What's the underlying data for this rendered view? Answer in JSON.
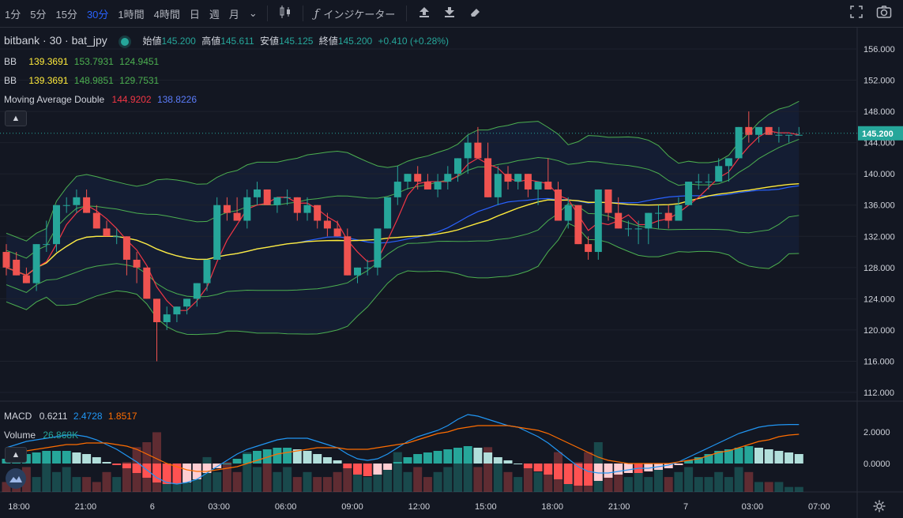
{
  "toolbar": {
    "timeframes": [
      "1分",
      "5分",
      "15分",
      "30分",
      "1時間",
      "4時間",
      "日",
      "週",
      "月"
    ],
    "active": "30分",
    "indicator_label": "インジケーター",
    "dropdown_glyph": "⌄"
  },
  "legend": {
    "symbol": "bitbank · 30 · bat_jpy",
    "open_label": "始値",
    "open": "145.200",
    "high_label": "高値",
    "high": "145.611",
    "low_label": "安値",
    "low": "145.125",
    "close_label": "終値",
    "close": "145.200",
    "change": "+0.410 (+0.28%)",
    "bb1": {
      "label": "BB",
      "basis": "139.3691",
      "upper": "153.7931",
      "lower": "124.9451"
    },
    "bb2": {
      "label": "BB",
      "basis": "139.3691",
      "upper": "148.9851",
      "lower": "129.7531"
    },
    "mad": {
      "label": "Moving Average Double",
      "fast": "144.9202",
      "slow": "138.8226"
    },
    "macd": {
      "label": "MACD",
      "hist": "0.6211",
      "macd": "2.4728",
      "signal": "1.8517"
    },
    "volume": {
      "label": "Volume",
      "value": "26.868K"
    }
  },
  "colors": {
    "up": "#26a69a",
    "down": "#ef5350",
    "bb": "#4caf50",
    "ma_fast": "#f23645",
    "ma_slow": "#2962ff",
    "ma_yellow": "#ffeb3b",
    "macd": "#2196f3",
    "signal": "#ff6d00"
  },
  "chart_data": {
    "type": "candlestick",
    "price_axis_ticks": [
      156,
      152,
      148,
      144,
      140,
      136,
      132,
      128,
      124,
      120,
      116,
      112
    ],
    "price_axis_labels": [
      "156.000",
      "152.000",
      "148.000",
      "144.000",
      "140.000",
      "136.000",
      "132.000",
      "128.000",
      "124.000",
      "120.000",
      "116.000",
      "112.000"
    ],
    "last_price": "145.200",
    "macd_axis_labels": [
      "2.0000",
      "0.0000"
    ],
    "time_labels": [
      "18:00",
      "21:00",
      "6",
      "03:00",
      "06:00",
      "09:00",
      "12:00",
      "15:00",
      "18:00",
      "21:00",
      "7",
      "03:00",
      "07:00"
    ],
    "candles_ohlc": [
      [
        130,
        131,
        127,
        128
      ],
      [
        129,
        130,
        127,
        127
      ],
      [
        127,
        128,
        126,
        126
      ],
      [
        126,
        131,
        125,
        131
      ],
      [
        131,
        134,
        130,
        131
      ],
      [
        131,
        136,
        130,
        136
      ],
      [
        136,
        137,
        135,
        136
      ],
      [
        136,
        138,
        135,
        137
      ],
      [
        137,
        138,
        135,
        135
      ],
      [
        135,
        136,
        133,
        133
      ],
      [
        133,
        134,
        132,
        132
      ],
      [
        132,
        133,
        131,
        132
      ],
      [
        132,
        132,
        127,
        129
      ],
      [
        129,
        130,
        126,
        128
      ],
      [
        128,
        128,
        124,
        124
      ],
      [
        124,
        124,
        116,
        121
      ],
      [
        121,
        123,
        120,
        122
      ],
      [
        122,
        123,
        121,
        123
      ],
      [
        123,
        124,
        122,
        124
      ],
      [
        124,
        126,
        123,
        126
      ],
      [
        126,
        129,
        125,
        129
      ],
      [
        129,
        137,
        129,
        136
      ],
      [
        136,
        137,
        134,
        135
      ],
      [
        135,
        137,
        134,
        134
      ],
      [
        134,
        138,
        133,
        137
      ],
      [
        137,
        139,
        136,
        138
      ],
      [
        138,
        138,
        136,
        136
      ],
      [
        136,
        137,
        135,
        137
      ],
      [
        137,
        138,
        136,
        137
      ],
      [
        137,
        137,
        134,
        135
      ],
      [
        135,
        137,
        134,
        136
      ],
      [
        136,
        136,
        133,
        134
      ],
      [
        134,
        135,
        132,
        133
      ],
      [
        133,
        134,
        132,
        132
      ],
      [
        132,
        133,
        127,
        127
      ],
      [
        127,
        128,
        126,
        128
      ],
      [
        128,
        129,
        127,
        128
      ],
      [
        128,
        133,
        127,
        133
      ],
      [
        133,
        137,
        133,
        137
      ],
      [
        137,
        141,
        136,
        139
      ],
      [
        139,
        140,
        138,
        140
      ],
      [
        140,
        141,
        138,
        139
      ],
      [
        139,
        140,
        138,
        138
      ],
      [
        138,
        140,
        137,
        139
      ],
      [
        139,
        141,
        138,
        140
      ],
      [
        140,
        142,
        139,
        142
      ],
      [
        142,
        145,
        140,
        144
      ],
      [
        144,
        146,
        143,
        142
      ],
      [
        142,
        144,
        137,
        137
      ],
      [
        137,
        141,
        136,
        140
      ],
      [
        140,
        141,
        138,
        139
      ],
      [
        139,
        140,
        138,
        140
      ],
      [
        140,
        140,
        137,
        138
      ],
      [
        138,
        139,
        136,
        139
      ],
      [
        139,
        142,
        138,
        138
      ],
      [
        138,
        139,
        134,
        134
      ],
      [
        134,
        137,
        133,
        136
      ],
      [
        136,
        136,
        131,
        131
      ],
      [
        131,
        132,
        129,
        130
      ],
      [
        130,
        138,
        129,
        138
      ],
      [
        138,
        138,
        134,
        135
      ],
      [
        135,
        137,
        133,
        133
      ],
      [
        133,
        134,
        132,
        133
      ],
      [
        133,
        134,
        131,
        133
      ],
      [
        133,
        135,
        131,
        135
      ],
      [
        135,
        136,
        133,
        135
      ],
      [
        135,
        136,
        133,
        134
      ],
      [
        134,
        137,
        134,
        136
      ],
      [
        136,
        139,
        136,
        139
      ],
      [
        139,
        140,
        138,
        139
      ],
      [
        139,
        140,
        138,
        139
      ],
      [
        139,
        142,
        139,
        141
      ],
      [
        141,
        142,
        139,
        142
      ],
      [
        142,
        146,
        142,
        146
      ],
      [
        146,
        148,
        144,
        145
      ],
      [
        145,
        146,
        144,
        146
      ],
      [
        146,
        146,
        145,
        145
      ],
      [
        145,
        146,
        144,
        145
      ],
      [
        145,
        145,
        144,
        145
      ],
      [
        145,
        146,
        145,
        145
      ]
    ],
    "volume": [
      2,
      4,
      5,
      3,
      6,
      4,
      5,
      3,
      3,
      2,
      4,
      3,
      6,
      9,
      10,
      12,
      4,
      3,
      3,
      5,
      7,
      4,
      6,
      4,
      8,
      5,
      6,
      4,
      5,
      3,
      4,
      3,
      3,
      4,
      5,
      4,
      3,
      4,
      5,
      8,
      4,
      5,
      3,
      4,
      5,
      6,
      7,
      5,
      9,
      6,
      4,
      3,
      5,
      4,
      4,
      8,
      5,
      6,
      8,
      10,
      3,
      4,
      3,
      4,
      3,
      5,
      3,
      4,
      5,
      3,
      3,
      4,
      3,
      5,
      4,
      2,
      2,
      2,
      1,
      1
    ],
    "macd_hist": [
      0.3,
      0.5,
      0.6,
      0.7,
      0.8,
      0.8,
      0.8,
      0.7,
      0.6,
      0.4,
      0.1,
      -0.1,
      -0.3,
      -0.6,
      -0.9,
      -1.2,
      -1.3,
      -1.3,
      -1.2,
      -1.0,
      -0.6,
      -0.3,
      0.0,
      0.3,
      0.6,
      0.8,
      0.9,
      1.0,
      1.0,
      0.9,
      0.8,
      0.6,
      0.4,
      0.2,
      -0.3,
      -0.7,
      -0.8,
      -0.7,
      -0.4,
      0.1,
      0.4,
      0.6,
      0.7,
      0.8,
      0.9,
      1.0,
      1.1,
      1.0,
      0.7,
      0.4,
      0.2,
      0.0,
      -0.3,
      -0.5,
      -0.7,
      -1.0,
      -1.3,
      -1.4,
      -1.4,
      -1.1,
      -0.9,
      -0.7,
      -0.6,
      -0.6,
      -0.5,
      -0.4,
      -0.3,
      -0.1,
      0.2,
      0.4,
      0.6,
      0.8,
      0.9,
      1.0,
      1.1,
      1.0,
      0.9,
      0.8,
      0.7,
      0.6
    ],
    "macd_line": [
      1.0,
      1.2,
      1.4,
      1.5,
      1.6,
      1.7,
      1.8,
      1.8,
      1.7,
      1.5,
      1.2,
      0.9,
      0.5,
      0.1,
      -0.4,
      -0.9,
      -1.2,
      -1.3,
      -1.2,
      -1.0,
      -0.6,
      -0.2,
      0.2,
      0.6,
      0.9,
      1.1,
      1.3,
      1.5,
      1.6,
      1.6,
      1.6,
      1.4,
      1.2,
      1.0,
      0.6,
      0.3,
      0.2,
      0.3,
      0.6,
      1.0,
      1.4,
      1.7,
      1.9,
      2.1,
      2.4,
      2.8,
      3.1,
      3.0,
      2.8,
      2.6,
      2.4,
      2.3,
      2.0,
      1.7,
      1.3,
      0.8,
      0.3,
      -0.2,
      -0.5,
      -0.6,
      -0.6,
      -0.5,
      -0.4,
      -0.3,
      -0.3,
      -0.2,
      -0.1,
      0.1,
      0.4,
      0.7,
      1.0,
      1.3,
      1.6,
      1.9,
      2.1,
      2.3,
      2.4,
      2.45,
      2.47,
      2.47
    ],
    "signal_line": [
      0.6,
      0.7,
      0.8,
      0.9,
      1.0,
      1.1,
      1.2,
      1.2,
      1.3,
      1.3,
      1.3,
      1.2,
      1.1,
      0.9,
      0.6,
      0.3,
      0.0,
      -0.2,
      -0.4,
      -0.5,
      -0.5,
      -0.4,
      -0.3,
      -0.2,
      0.0,
      0.2,
      0.4,
      0.6,
      0.7,
      0.8,
      0.9,
      1.0,
      1.0,
      1.0,
      0.9,
      0.9,
      0.9,
      1.0,
      1.1,
      1.2,
      1.3,
      1.5,
      1.7,
      1.9,
      2.0,
      2.2,
      2.3,
      2.4,
      2.4,
      2.4,
      2.4,
      2.3,
      2.2,
      2.1,
      1.9,
      1.6,
      1.3,
      1.0,
      0.7,
      0.4,
      0.2,
      0.1,
      0.0,
      0.0,
      0.0,
      0.0,
      0.0,
      0.1,
      0.2,
      0.3,
      0.5,
      0.7,
      0.8,
      1.0,
      1.2,
      1.4,
      1.5,
      1.7,
      1.8,
      1.85
    ]
  }
}
